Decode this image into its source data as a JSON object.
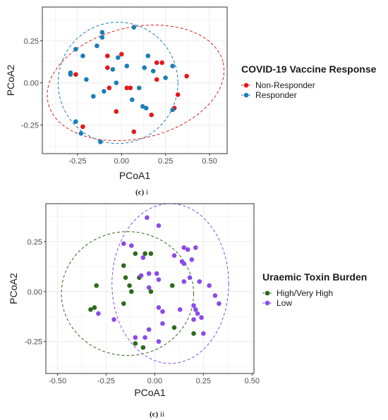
{
  "chart_data": [
    {
      "type": "scatter",
      "title": "",
      "xlabel": "PCoA1",
      "ylabel": "PCoA2",
      "xlim": [
        -0.45,
        0.6
      ],
      "ylim": [
        -0.42,
        0.45
      ],
      "xticks": [
        "-0.25",
        "0.00",
        "0.25",
        "0.50"
      ],
      "xtick_values": [
        -0.25,
        0.0,
        0.25,
        0.5
      ],
      "yticks": [
        "0.25",
        "0.00",
        "-0.25"
      ],
      "ytick_values": [
        0.25,
        0.0,
        -0.25
      ],
      "grid": true,
      "legend": {
        "title": "COVID-19 Vaccine Response",
        "placement": "right",
        "entries": [
          "Non-Responder",
          "Responder"
        ]
      },
      "caption": {
        "label": "(c)",
        "suffix": " i"
      },
      "series": [
        {
          "name": "Non-Responder",
          "color": "#e31a1c",
          "points": [
            [
              -0.08,
              0.16
            ],
            [
              0.0,
              0.17
            ],
            [
              -0.08,
              0.09
            ],
            [
              -0.26,
              0.05
            ],
            [
              -0.07,
              -0.03
            ],
            [
              0.03,
              -0.03
            ],
            [
              0.05,
              -0.03
            ],
            [
              -0.03,
              -0.17
            ],
            [
              0.07,
              -0.29
            ],
            [
              -0.22,
              -0.26
            ],
            [
              0.17,
              -0.19
            ],
            [
              0.2,
              0.12
            ],
            [
              0.23,
              0.12
            ],
            [
              0.37,
              0.04
            ],
            [
              0.2,
              0.02
            ],
            [
              0.32,
              -0.07
            ],
            [
              0.3,
              -0.15
            ]
          ],
          "ellipse": {
            "cx": 0.08,
            "cy": 0.0,
            "rx": 0.51,
            "ry": 0.33,
            "angle_deg": 13
          }
        },
        {
          "name": "Responder",
          "color": "#1a7eb8",
          "points": [
            [
              -0.11,
              0.3
            ],
            [
              -0.11,
              0.27
            ],
            [
              0.07,
              0.33
            ],
            [
              -0.14,
              0.22
            ],
            [
              -0.26,
              0.2
            ],
            [
              -0.22,
              0.16
            ],
            [
              -0.02,
              0.15
            ],
            [
              -0.05,
              0.08
            ],
            [
              -0.29,
              0.06
            ],
            [
              -0.29,
              0.05
            ],
            [
              0.15,
              0.16
            ],
            [
              0.13,
              0.09
            ],
            [
              0.18,
              0.07
            ],
            [
              0.29,
              0.1
            ],
            [
              0.25,
              0.03
            ],
            [
              0.03,
              0.1
            ],
            [
              -0.03,
              0.0
            ],
            [
              -0.2,
              0.02
            ],
            [
              -0.1,
              -0.05
            ],
            [
              0.1,
              -0.03
            ],
            [
              -0.16,
              -0.08
            ],
            [
              0.12,
              -0.14
            ],
            [
              0.14,
              -0.15
            ],
            [
              0.06,
              -0.1
            ],
            [
              0.29,
              -0.16
            ],
            [
              -0.26,
              -0.23
            ],
            [
              -0.23,
              -0.3
            ],
            [
              -0.12,
              -0.35
            ]
          ],
          "ellipse": {
            "cx": -0.02,
            "cy": 0.0,
            "rx": 0.34,
            "ry": 0.36,
            "angle_deg": 0
          }
        }
      ]
    },
    {
      "type": "scatter",
      "title": "",
      "xlabel": "PCoA1",
      "ylabel": "PCoA2",
      "xlim": [
        -0.56,
        0.51
      ],
      "ylim": [
        -0.41,
        0.44
      ],
      "xticks": [
        "-0.50",
        "-0.25",
        "0.00",
        "0.25",
        "0.50"
      ],
      "xtick_values": [
        -0.5,
        -0.25,
        0.0,
        0.25,
        0.5
      ],
      "yticks": [
        "0.25",
        "0.00",
        "-0.25"
      ],
      "ytick_values": [
        0.25,
        0.0,
        -0.25
      ],
      "grid": true,
      "legend": {
        "title": "Uraemic Toxin Burden",
        "placement": "right",
        "entries": [
          "High/Very High",
          "Low"
        ]
      },
      "caption": {
        "label": "(c)",
        "suffix": " ii"
      },
      "series": [
        {
          "name": "High/Very High",
          "color": "#2d6a1a",
          "points": [
            [
              -0.1,
              0.19
            ],
            [
              -0.05,
              0.19
            ],
            [
              -0.02,
              0.19
            ],
            [
              -0.16,
              0.13
            ],
            [
              -0.15,
              0.07
            ],
            [
              -0.08,
              0.07
            ],
            [
              -0.13,
              0.03
            ],
            [
              -0.12,
              0.0
            ],
            [
              -0.3,
              0.03
            ],
            [
              -0.33,
              -0.09
            ],
            [
              -0.31,
              -0.08
            ],
            [
              -0.16,
              -0.06
            ],
            [
              -0.02,
              0.0
            ],
            [
              0.09,
              0.03
            ],
            [
              0.1,
              -0.18
            ],
            [
              0.2,
              -0.21
            ],
            [
              -0.1,
              -0.26
            ],
            [
              -0.06,
              -0.28
            ]
          ],
          "ellipse": {
            "cx": -0.14,
            "cy": -0.01,
            "rx": 0.34,
            "ry": 0.31,
            "angle_deg": 0
          }
        },
        {
          "name": "Low",
          "color": "#8a4be8",
          "points": [
            [
              -0.04,
              0.37
            ],
            [
              0.02,
              0.33
            ],
            [
              -0.16,
              0.24
            ],
            [
              -0.12,
              0.23
            ],
            [
              -0.06,
              0.17
            ],
            [
              0.1,
              0.18
            ],
            [
              0.15,
              0.22
            ],
            [
              0.17,
              0.21
            ],
            [
              0.21,
              0.22
            ],
            [
              0.14,
              0.15
            ],
            [
              0.15,
              0.14
            ],
            [
              0.19,
              0.16
            ],
            [
              -0.03,
              0.09
            ],
            [
              -0.07,
              0.08
            ],
            [
              0.01,
              0.09
            ],
            [
              0.02,
              0.06
            ],
            [
              -0.03,
              0.02
            ],
            [
              0.15,
              0.05
            ],
            [
              0.18,
              0.07
            ],
            [
              0.23,
              0.05
            ],
            [
              0.28,
              0.03
            ],
            [
              0.31,
              -0.02
            ],
            [
              0.33,
              -0.06
            ],
            [
              0.02,
              -0.08
            ],
            [
              0.04,
              -0.1
            ],
            [
              0.13,
              -0.09
            ],
            [
              0.2,
              -0.07
            ],
            [
              0.21,
              -0.09
            ],
            [
              0.22,
              -0.11
            ],
            [
              0.24,
              -0.13
            ],
            [
              0.2,
              -0.14
            ],
            [
              -0.29,
              -0.11
            ],
            [
              -0.21,
              -0.14
            ],
            [
              -0.03,
              -0.19
            ],
            [
              0.04,
              -0.16
            ],
            [
              -0.1,
              -0.23
            ],
            [
              -0.05,
              -0.23
            ],
            [
              0.25,
              -0.21
            ],
            [
              0.02,
              -0.25
            ]
          ],
          "ellipse": {
            "cx": 0.08,
            "cy": 0.04,
            "rx": 0.3,
            "ry": 0.4,
            "angle_deg": 0
          }
        }
      ]
    }
  ]
}
